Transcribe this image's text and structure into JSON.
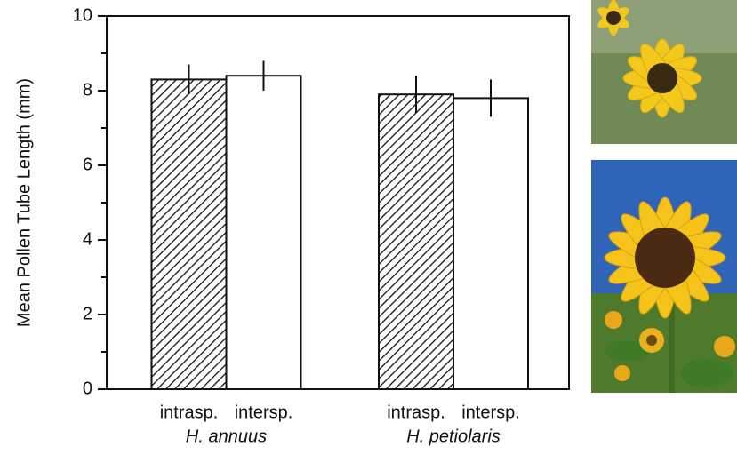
{
  "chart_data": {
    "type": "bar",
    "ylabel": "Mean Pollen Tube Length (mm)",
    "categories": [
      "H. annuus",
      "H. petiolaris"
    ],
    "series": [
      {
        "name": "intrasp.",
        "color": "#ffffff",
        "pattern": "hatch",
        "values": [
          8.3,
          7.9
        ],
        "errors": [
          0.4,
          0.5
        ]
      },
      {
        "name": "intersp.",
        "color": "#ffffff",
        "pattern": "none",
        "values": [
          8.4,
          7.8
        ],
        "errors": [
          0.4,
          0.5
        ]
      }
    ],
    "ylim": [
      0,
      10
    ],
    "yticks": [
      0,
      2,
      4,
      6,
      8,
      10
    ],
    "yminorticks": [
      1,
      3,
      5,
      7,
      9
    ],
    "grid": false
  }
}
